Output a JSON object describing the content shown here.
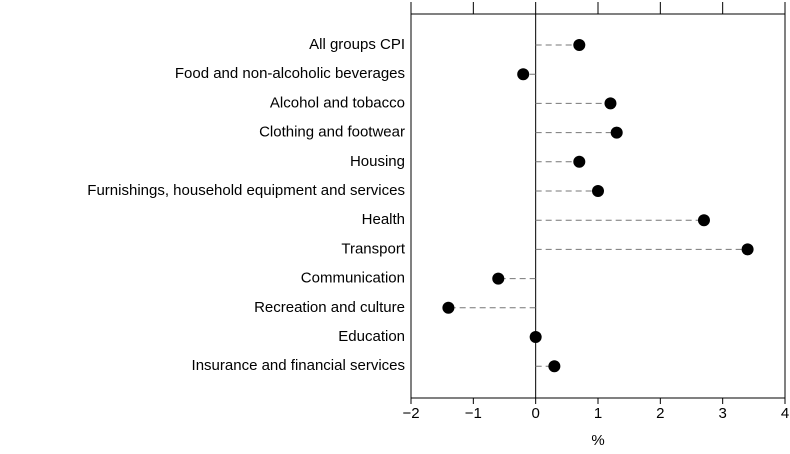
{
  "chart_data": {
    "type": "dot",
    "categories": [
      "All groups CPI",
      "Food and non-alcoholic beverages",
      "Alcohol and tobacco",
      "Clothing and footwear",
      "Housing",
      "Furnishings, household equipment and services",
      "Health",
      "Transport",
      "Communication",
      "Recreation and culture",
      "Education",
      "Insurance and financial services"
    ],
    "values": [
      0.7,
      -0.2,
      1.2,
      1.3,
      0.7,
      1.0,
      2.7,
      3.4,
      -0.6,
      -1.4,
      0.0,
      0.3
    ],
    "color": "#000000",
    "xlabel": "%",
    "xlim": [
      -2,
      4
    ],
    "xticks": [
      {
        "value": -2,
        "label": "−2"
      },
      {
        "value": -1,
        "label": "−1"
      },
      0,
      1,
      2,
      3,
      4
    ]
  }
}
